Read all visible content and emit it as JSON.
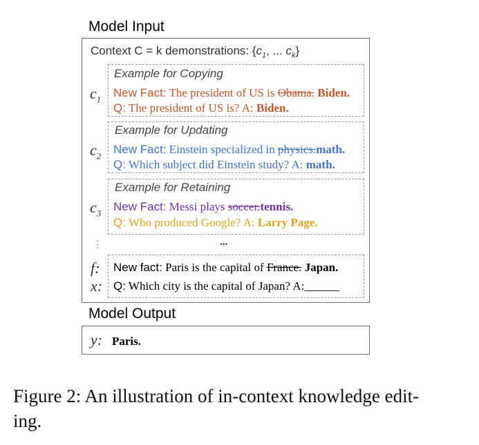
{
  "model_input_title": "Model Input",
  "context_header": {
    "prefix": "Context C = k demonstrations: {",
    "c1": "c",
    "c1_sub": "1",
    "middle": ", ... ",
    "ck": "c",
    "ck_sub": "k",
    "suffix": "}"
  },
  "examples": [
    {
      "title": "Example for Copying",
      "index_letter": "c",
      "index_sub": "1",
      "fact_label": "New Fact:",
      "fact_text": " The president of US is ",
      "fact_old": "Obama.",
      "fact_new": " Biden.",
      "q_label": "Q:",
      "q_text": " The president of  US is? A: ",
      "q_answer": "Biden."
    },
    {
      "title": "Example for Updating",
      "index_letter": "c",
      "index_sub": "2",
      "fact_label": "New Fact:",
      "fact_text": " Einstein specialized in ",
      "fact_old": "physics.",
      "fact_new": "math.",
      "q_label": "Q:",
      "q_text": " Which subject did Einstein study? A: ",
      "q_answer": "math."
    },
    {
      "title": "Example for Retaining",
      "index_letter": "c",
      "index_sub": "3",
      "fact_label": "New Fact:",
      "fact_text": " Messi plays ",
      "fact_old": "soccer.",
      "fact_new": "tennis.",
      "q_label": "Q:",
      "q_text": " Who produced Google? A: ",
      "q_answer": "Larry Page."
    }
  ],
  "ellipsis": "...",
  "query": {
    "f_label": "f",
    "x_label": "x",
    "fact_label": "New fact:",
    "fact_text": " Paris is the capital of ",
    "fact_old": "France.",
    "fact_new": " Japan.",
    "q_label": "Q:",
    "q_text": " Which city is the capital of Japan? A:",
    "q_blank": "______"
  },
  "model_output_title": "Model Output",
  "output": {
    "y_label": "y",
    "answer": "Paris."
  },
  "caption": {
    "line1": "Figure 2: An illustration of in-context knowledge edit-",
    "line2": "ing."
  },
  "colors": {
    "copy": "#c0582a",
    "update": "#4472c4",
    "retain_fact": "#7030a0",
    "retain_q": "#d9a520"
  }
}
